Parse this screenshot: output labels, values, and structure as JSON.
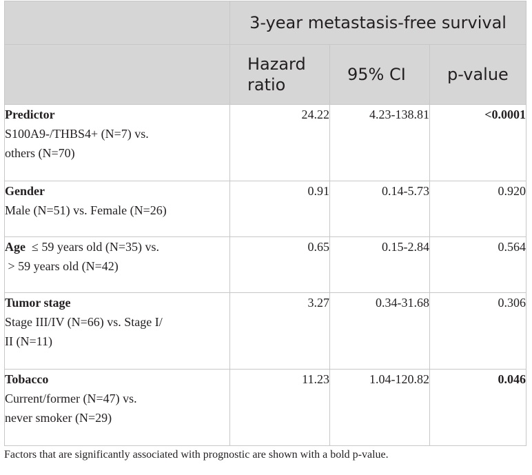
{
  "header": {
    "group_title": "3-year metastasis-free survival",
    "hazard_ratio_line1": "Hazard",
    "hazard_ratio_line2": "ratio",
    "ci": "95% CI",
    "pvalue": "p-value"
  },
  "rows": [
    {
      "title": "Predictor",
      "desc_line1": "S100A9-/THBS4+ (N=7) vs.",
      "desc_line2": "others (N=70)",
      "hr": "24.22",
      "ci": "4.23-138.81",
      "p": "<0.0001",
      "p_bold": true
    },
    {
      "title": "Gender",
      "desc_line1": "Male (N=51) vs. Female (N=26)",
      "hr": "0.91",
      "ci": "0.14-5.73",
      "p": "0.920",
      "p_bold": false
    },
    {
      "title": "Age",
      "desc_inline": "≤ 59 years old (N=35) vs.",
      "desc_line2": "> 59 years old (N=42)",
      "hr": "0.65",
      "ci": "0.15-2.84",
      "p": "0.564",
      "p_bold": false
    },
    {
      "title": "Tumor stage",
      "desc_line1": "Stage III/IV (N=66) vs. Stage I/",
      "desc_line2": "II (N=11)",
      "hr": "3.27",
      "ci": "0.34-31.68",
      "p": "0.306",
      "p_bold": false
    },
    {
      "title": "Tobacco",
      "desc_line1": "Current/former (N=47) vs.",
      "desc_line2": "never smoker (N=29)",
      "hr": "11.23",
      "ci": "1.04-120.82",
      "p": "0.046",
      "p_bold": true
    }
  ],
  "footnote": "Factors that are significantly associated with prognostic are shown with a bold p-value.",
  "colors": {
    "header_bg": "#d6d6d6",
    "border": "#c7c7c7",
    "text": "#231f20"
  }
}
